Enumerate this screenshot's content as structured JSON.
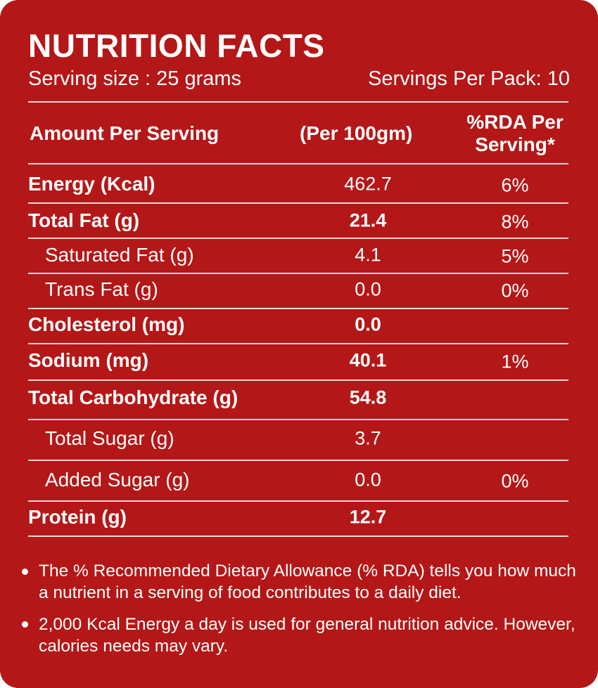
{
  "header": {
    "title": "NUTRITION FACTS",
    "serving_size": "Serving size : 25 grams",
    "servings_per_pack": "Servings Per Pack: 10"
  },
  "table": {
    "columns": [
      "Amount Per Serving",
      "(Per 100gm)",
      "%RDA Per Serving*"
    ],
    "rows": [
      {
        "label": "Energy (Kcal)",
        "per_100g": "462.7",
        "rda": "6%"
      },
      {
        "label": "Total Fat (g)",
        "per_100g": "21.4",
        "rda": "8%"
      },
      {
        "label": "Saturated Fat (g)",
        "per_100g": "4.1",
        "rda": "5%"
      },
      {
        "label": "Trans Fat (g)",
        "per_100g": "0.0",
        "rda": "0%"
      },
      {
        "label": "Cholesterol (mg)",
        "per_100g": "0.0"
      },
      {
        "label": "Sodium  (mg)",
        "per_100g": "40.1",
        "rda": "1%"
      },
      {
        "label": "Total Carbohydrate (g)",
        "per_100g": "54.8"
      },
      {
        "label": "Total Sugar (g)",
        "per_100g": "3.7"
      },
      {
        "label": "Added Sugar (g)",
        "per_100g": "0.0",
        "rda": "0%"
      },
      {
        "label": "Protein (g)",
        "per_100g": "12.7"
      }
    ]
  },
  "notes": [
    "The % Recommended Dietary Allowance (% RDA) tells you how much a nutrient in a serving of food contributes to a daily diet.",
    "2,000 Kcal Energy a day is used for general nutrition advice. However, calories needs may vary."
  ]
}
